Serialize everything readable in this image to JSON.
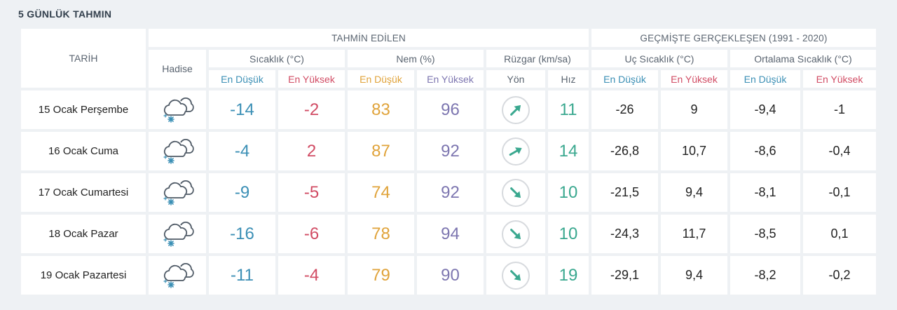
{
  "page_title": "5 GÜNLÜK TAHMIN",
  "headers": {
    "date": "TARİH",
    "forecast_group": "TAHMİN EDİLEN",
    "history_group": "GEÇMİŞTE GERÇEKLEŞEN (1991 - 2020)",
    "event": "Hadise",
    "temp": "Sıcaklık (°C)",
    "humidity": "Nem (%)",
    "wind": "Rüzgar (km/sa)",
    "extreme_temp": "Uç Sıcaklık (°C)",
    "avg_temp": "Ortalama Sıcaklık (°C)",
    "low": "En Düşük",
    "high": "En Yüksek",
    "direction": "Yön",
    "speed": "Hız"
  },
  "colors": {
    "low": "#3b8fb5",
    "high": "#d14c64",
    "humidity_low": "#e0a33a",
    "humidity_high": "#7d76b0",
    "speed": "#3aa88f"
  },
  "rows": [
    {
      "date": "15 Ocak Perşembe",
      "icon": "snow-cloud-icon",
      "temp_low": "-14",
      "temp_high": "-2",
      "hum_low": "83",
      "hum_high": "96",
      "wind_dir": "northeast-arrow",
      "wind_speed": "11",
      "ext_low": "-26",
      "ext_high": "9",
      "avg_low": "-9,4",
      "avg_high": "-1"
    },
    {
      "date": "16 Ocak Cuma",
      "icon": "snow-cloud-icon",
      "temp_low": "-4",
      "temp_high": "2",
      "hum_low": "87",
      "hum_high": "92",
      "wind_dir": "east-northeast-arrow",
      "wind_speed": "14",
      "ext_low": "-26,8",
      "ext_high": "10,7",
      "avg_low": "-8,6",
      "avg_high": "-0,4"
    },
    {
      "date": "17 Ocak Cumartesi",
      "icon": "snow-cloud-icon",
      "temp_low": "-9",
      "temp_high": "-5",
      "hum_low": "74",
      "hum_high": "92",
      "wind_dir": "southeast-arrow",
      "wind_speed": "10",
      "ext_low": "-21,5",
      "ext_high": "9,4",
      "avg_low": "-8,1",
      "avg_high": "-0,1"
    },
    {
      "date": "18 Ocak Pazar",
      "icon": "snow-cloud-icon",
      "temp_low": "-16",
      "temp_high": "-6",
      "hum_low": "78",
      "hum_high": "94",
      "wind_dir": "southeast-arrow",
      "wind_speed": "10",
      "ext_low": "-24,3",
      "ext_high": "11,7",
      "avg_low": "-8,5",
      "avg_high": "0,1"
    },
    {
      "date": "19 Ocak Pazartesi",
      "icon": "snow-cloud-icon",
      "temp_low": "-11",
      "temp_high": "-4",
      "hum_low": "79",
      "hum_high": "90",
      "wind_dir": "southeast-arrow",
      "wind_speed": "19",
      "ext_low": "-29,1",
      "ext_high": "9,4",
      "avg_low": "-8,2",
      "avg_high": "-0,2"
    }
  ]
}
